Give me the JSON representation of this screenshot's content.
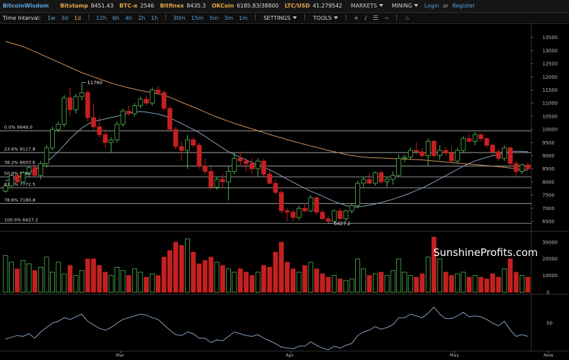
{
  "topbar": {
    "brand": "BitcoinWisdom",
    "exchanges": [
      {
        "name": "Bitstamp",
        "value": "8451.43"
      },
      {
        "name": "BTC-e",
        "value": "2546"
      },
      {
        "name": "Bitfinex",
        "value": "8435.3"
      },
      {
        "name": "OKCoin",
        "value": "6185.83/38800"
      },
      {
        "name": "LTC/USD",
        "value": "41.279542"
      }
    ],
    "markets_label": "MARKETS",
    "mining_label": "MINING",
    "login_label": "Login",
    "or_label": "or",
    "register_label": "Register"
  },
  "toolbar": {
    "time_interval_label": "Time Interval:",
    "intervals": [
      "1w",
      "3d",
      "1d",
      "12h",
      "6h",
      "4h",
      "2h",
      "1h",
      "30m",
      "15m",
      "5m",
      "3m",
      "1m"
    ],
    "active_interval": "1d",
    "settings_label": "SETTINGS",
    "tools_label": "TOOLS",
    "tool_icons": [
      "crosshair-icon",
      "line-icon",
      "menu-icon",
      "draw-icon",
      "bell-icon"
    ]
  },
  "watermark": "SunshineProfits.com",
  "chart_data": {
    "type": "candlestick",
    "price_axis": {
      "ticks": [
        6500,
        7000,
        7500,
        8000,
        8500,
        9000,
        9500,
        10000,
        10500,
        11000,
        11500,
        12000,
        12500,
        13000,
        13500
      ],
      "range": [
        6200,
        13700
      ]
    },
    "volume_axis": {
      "ticks": [
        0,
        10000,
        20000,
        30000
      ],
      "range": [
        0,
        34000
      ]
    },
    "oscillator_axis": {
      "ticks": [
        50
      ],
      "range": [
        20,
        80
      ]
    },
    "x_labels": [
      "Mar",
      "Apr",
      "May",
      "Now"
    ],
    "annotations": [
      {
        "label": "11780",
        "value": 11780
      },
      {
        "label": "6427.2",
        "value": 6427.2
      }
    ],
    "fibonacci": [
      {
        "label": "0.0% 9949.0",
        "value": 9949.0
      },
      {
        "label": "23.6% 9117.8",
        "value": 9117.8
      },
      {
        "label": "38.2% 8603.6",
        "value": 8603.6
      },
      {
        "label": "50.0% 8188.1",
        "value": 8188.1
      },
      {
        "label": "61.8% 7772.5",
        "value": 7772.5
      },
      {
        "label": "78.6% 7180.8",
        "value": 7180.8
      },
      {
        "label": "100.0% 6427.2",
        "value": 6427.2
      }
    ],
    "colors": {
      "up": "#53b953",
      "down": "#c52020",
      "ma_fast": "#8aa4c2",
      "ma_slow": "#d8955a",
      "fib": "#bbbbbb",
      "grid": "#2a2a2a"
    },
    "candles": [
      [
        7650,
        7900,
        7600,
        7850
      ],
      [
        7850,
        8300,
        7800,
        8250
      ],
      [
        8250,
        8300,
        7950,
        8000
      ],
      [
        8000,
        8400,
        7950,
        8350
      ],
      [
        8350,
        8600,
        8200,
        8550
      ],
      [
        8550,
        8650,
        8150,
        8250
      ],
      [
        8250,
        8800,
        8100,
        8700
      ],
      [
        8700,
        9400,
        8550,
        9300
      ],
      [
        9300,
        10100,
        9200,
        10000
      ],
      [
        10000,
        10300,
        9900,
        10200
      ],
      [
        10200,
        11300,
        10100,
        11200
      ],
      [
        11200,
        11600,
        10500,
        10750
      ],
      [
        10750,
        11350,
        10600,
        11250
      ],
      [
        11250,
        11780,
        11100,
        11400
      ],
      [
        11400,
        11500,
        10300,
        10450
      ],
      [
        10450,
        11000,
        10000,
        10100
      ],
      [
        10100,
        10500,
        9700,
        9800
      ],
      [
        9800,
        10000,
        9300,
        9500
      ],
      [
        9500,
        9700,
        9100,
        9600
      ],
      [
        9600,
        10300,
        9500,
        10200
      ],
      [
        10200,
        10800,
        10100,
        10700
      ],
      [
        10700,
        10900,
        10500,
        10600
      ],
      [
        10600,
        11000,
        10500,
        10900
      ],
      [
        10900,
        11250,
        10800,
        11150
      ],
      [
        11150,
        11300,
        10900,
        11000
      ],
      [
        11000,
        11600,
        10900,
        11500
      ],
      [
        11500,
        11650,
        11300,
        11400
      ],
      [
        11400,
        11500,
        10700,
        10800
      ],
      [
        10800,
        10900,
        9900,
        10000
      ],
      [
        10000,
        10100,
        9250,
        9350
      ],
      [
        9350,
        9550,
        8800,
        9200
      ],
      [
        9200,
        9800,
        8500,
        9600
      ],
      [
        9600,
        9700,
        9300,
        9400
      ],
      [
        9400,
        9500,
        8500,
        8600
      ],
      [
        8600,
        8900,
        8300,
        8400
      ],
      [
        8400,
        8600,
        7700,
        7800
      ],
      [
        7800,
        8200,
        7700,
        8100
      ],
      [
        8100,
        8300,
        7800,
        8000
      ],
      [
        8000,
        8600,
        7300,
        8400
      ],
      [
        8400,
        9100,
        8300,
        8900
      ],
      [
        8900,
        9150,
        8600,
        8800
      ],
      [
        8800,
        8900,
        8400,
        8700
      ],
      [
        8700,
        8900,
        8300,
        8500
      ],
      [
        8500,
        8900,
        8200,
        8800
      ],
      [
        8800,
        8900,
        8200,
        8300
      ],
      [
        8300,
        8500,
        7900,
        7950
      ],
      [
        7950,
        8100,
        7500,
        7600
      ],
      [
        7600,
        7700,
        6800,
        6900
      ],
      [
        6900,
        7000,
        6500,
        6850
      ],
      [
        6850,
        6950,
        6500,
        6650
      ],
      [
        6650,
        7100,
        6550,
        7000
      ],
      [
        7000,
        7200,
        6850,
        6900
      ],
      [
        6900,
        7500,
        6850,
        7400
      ],
      [
        7400,
        7450,
        6750,
        6850
      ],
      [
        6850,
        6950,
        6550,
        6600
      ],
      [
        6600,
        6700,
        6427,
        6500
      ],
      [
        6500,
        6950,
        6450,
        6900
      ],
      [
        6900,
        7000,
        6500,
        6600
      ],
      [
        6600,
        6950,
        6500,
        6900
      ],
      [
        6900,
        7200,
        6800,
        7100
      ],
      [
        7100,
        8050,
        7000,
        7950
      ],
      [
        7950,
        8200,
        7800,
        8100
      ],
      [
        8100,
        8350,
        7900,
        7950
      ],
      [
        7950,
        8400,
        7850,
        8350
      ],
      [
        8350,
        8450,
        7900,
        8000
      ],
      [
        8000,
        8200,
        7800,
        8100
      ],
      [
        8100,
        8400,
        7900,
        8250
      ],
      [
        8250,
        9050,
        8200,
        8900
      ],
      [
        8900,
        9050,
        8750,
        8950
      ],
      [
        8950,
        9300,
        8850,
        9200
      ],
      [
        9200,
        9500,
        9050,
        9150
      ],
      [
        9150,
        9300,
        8900,
        9000
      ],
      [
        9000,
        9650,
        8600,
        9550
      ],
      [
        9550,
        9600,
        8900,
        9000
      ],
      [
        9000,
        9400,
        8850,
        9200
      ],
      [
        9200,
        9350,
        9000,
        9100
      ],
      [
        9100,
        9350,
        8700,
        8800
      ],
      [
        8800,
        9300,
        8700,
        9200
      ],
      [
        9200,
        9750,
        9100,
        9650
      ],
      [
        9650,
        9800,
        9500,
        9550
      ],
      [
        9550,
        9900,
        9400,
        9800
      ],
      [
        9800,
        9850,
        9550,
        9650
      ],
      [
        9650,
        9700,
        9300,
        9400
      ],
      [
        9400,
        9450,
        9000,
        9150
      ],
      [
        9150,
        9250,
        8800,
        8900
      ],
      [
        8900,
        9400,
        8800,
        9300
      ],
      [
        9300,
        9350,
        8600,
        8700
      ],
      [
        8700,
        8800,
        8200,
        8400
      ],
      [
        8400,
        8700,
        8300,
        8650
      ],
      [
        8650,
        8750,
        8450,
        8500
      ]
    ],
    "volumes": [
      22000,
      18000,
      14000,
      19000,
      17000,
      13000,
      15000,
      21000,
      12000,
      18000,
      11000,
      16000,
      10000,
      13000,
      20000,
      20000,
      16000,
      12000,
      10000,
      15000,
      13000,
      10000,
      14000,
      12000,
      9000,
      11000,
      10000,
      21000,
      25000,
      30000,
      28000,
      32000,
      24000,
      17000,
      19000,
      21000,
      18000,
      16000,
      14000,
      12000,
      14000,
      12000,
      10000,
      12000,
      16000,
      15000,
      24000,
      30000,
      18000,
      14000,
      12000,
      16000,
      18000,
      14000,
      11000,
      9000,
      10000,
      8000,
      7000,
      8000,
      20000,
      14000,
      10000,
      11000,
      12000,
      10000,
      13000,
      20000,
      12000,
      10000,
      9000,
      11000,
      21000,
      33000,
      20000,
      12000,
      10000,
      11000,
      12000,
      9000,
      10000,
      9000,
      8000,
      11000,
      9000,
      14000,
      20000,
      12000,
      10000,
      9000
    ],
    "ma_fast": [
      8050,
      8100,
      8150,
      8250,
      8350,
      8450,
      8600,
      8750,
      8950,
      9150,
      9400,
      9650,
      9850,
      10050,
      10200,
      10300,
      10350,
      10400,
      10450,
      10500,
      10560,
      10620,
      10660,
      10680,
      10660,
      10620,
      10580,
      10520,
      10440,
      10330,
      10220,
      10110,
      10000,
      9880,
      9740,
      9580,
      9440,
      9290,
      9150,
      9040,
      8940,
      8840,
      8740,
      8650,
      8560,
      8460,
      8350,
      8230,
      8110,
      7990,
      7870,
      7760,
      7650,
      7560,
      7460,
      7360,
      7260,
      7180,
      7100,
      7060,
      7050,
      7080,
      7120,
      7160,
      7220,
      7280,
      7340,
      7420,
      7500,
      7580,
      7680,
      7770,
      7880,
      8000,
      8120,
      8240,
      8360,
      8480,
      8600,
      8700,
      8800,
      8870,
      8940,
      9000,
      9050,
      9120,
      9150,
      9170,
      9160,
      9150
    ],
    "ma_slow": [
      13350,
      13280,
      13220,
      13150,
      13060,
      12960,
      12860,
      12760,
      12660,
      12560,
      12460,
      12360,
      12260,
      12160,
      12080,
      12000,
      11920,
      11840,
      11760,
      11700,
      11640,
      11580,
      11530,
      11480,
      11440,
      11400,
      11360,
      11300,
      11220,
      11130,
      11030,
      10940,
      10850,
      10760,
      10660,
      10560,
      10470,
      10390,
      10310,
      10230,
      10160,
      10090,
      10020,
      9950,
      9880,
      9810,
      9740,
      9680,
      9610,
      9550,
      9490,
      9430,
      9370,
      9320,
      9260,
      9200,
      9150,
      9100,
      9050,
      9010,
      8970,
      8950,
      8930,
      8920,
      8910,
      8900,
      8890,
      8880,
      8870,
      8860,
      8850,
      8840,
      8820,
      8800,
      8780,
      8760,
      8740,
      8720,
      8700,
      8680,
      8660,
      8640,
      8620,
      8600,
      8580,
      8560,
      8530,
      8500,
      8470,
      8450
    ],
    "oscillator": [
      32,
      34,
      36,
      35,
      38,
      33,
      40,
      45,
      50,
      52,
      56,
      54,
      57,
      60,
      52,
      48,
      44,
      42,
      45,
      50,
      54,
      56,
      58,
      60,
      59,
      56,
      54,
      48,
      42,
      37,
      36,
      40,
      38,
      33,
      33,
      28,
      31,
      30,
      35,
      40,
      38,
      36,
      35,
      37,
      33,
      30,
      27,
      23,
      22,
      21,
      24,
      24,
      29,
      25,
      22,
      20,
      24,
      22,
      25,
      27,
      36,
      40,
      42,
      46,
      43,
      45,
      48,
      56,
      56,
      60,
      58,
      56,
      61,
      68,
      60,
      55,
      55,
      58,
      62,
      57,
      58,
      57,
      54,
      50,
      47,
      52,
      42,
      35,
      37,
      35
    ]
  }
}
